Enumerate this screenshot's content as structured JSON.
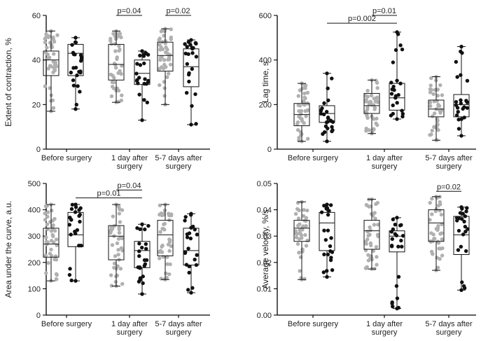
{
  "chart_data": [
    {
      "type": "box",
      "ylabel": "Extent of contraction, %",
      "ylim": [
        0,
        60
      ],
      "yticks": [
        0,
        20,
        40,
        60
      ],
      "categories": [
        "Before surgery",
        "1 day after surgery",
        "5-7 days after surgery"
      ],
      "colors": {
        "group_a": "#b0b0b0",
        "group_b": "#111111"
      },
      "boxes": [
        {
          "category": 0,
          "group": "a",
          "min": 17,
          "q1": 33,
          "median": 40,
          "q3": 44,
          "max": 53
        },
        {
          "category": 0,
          "group": "b",
          "min": 18,
          "q1": 33,
          "median": 43,
          "q3": 47,
          "max": 50
        },
        {
          "category": 1,
          "group": "a",
          "min": 21,
          "q1": 31,
          "median": 38,
          "q3": 47,
          "max": 53
        },
        {
          "category": 1,
          "group": "b",
          "min": 13,
          "q1": 29,
          "median": 34,
          "q3": 40,
          "max": 44
        },
        {
          "category": 2,
          "group": "a",
          "min": 20,
          "q1": 35,
          "median": 42,
          "q3": 48,
          "max": 54
        },
        {
          "category": 2,
          "group": "b",
          "min": 11,
          "q1": 28,
          "median": 37,
          "q3": 45,
          "max": 49
        }
      ],
      "significance": [
        {
          "label": "p=0.04",
          "from": [
            1,
            "a"
          ],
          "to": [
            1,
            "b"
          ],
          "y": 60
        },
        {
          "label": "p=0.02",
          "from": [
            2,
            "a"
          ],
          "to": [
            2,
            "b"
          ],
          "y": 60
        }
      ]
    },
    {
      "type": "box",
      "ylabel": "Lag time, s",
      "ylim": [
        0,
        600
      ],
      "yticks": [
        0,
        200,
        400,
        600
      ],
      "categories": [
        "Before surgery",
        "1 day after surgery",
        "5-7 days after surgery"
      ],
      "colors": {
        "group_a": "#b0b0b0",
        "group_b": "#111111"
      },
      "boxes": [
        {
          "category": 0,
          "group": "a",
          "min": 35,
          "q1": 105,
          "median": 155,
          "q3": 205,
          "max": 295
        },
        {
          "category": 0,
          "group": "b",
          "min": 35,
          "q1": 120,
          "median": 160,
          "q3": 195,
          "max": 340
        },
        {
          "category": 1,
          "group": "a",
          "min": 70,
          "q1": 160,
          "median": 195,
          "q3": 250,
          "max": 310
        },
        {
          "category": 1,
          "group": "b",
          "min": 135,
          "q1": 175,
          "median": 230,
          "q3": 295,
          "max": 525
        },
        {
          "category": 2,
          "group": "a",
          "min": 40,
          "q1": 145,
          "median": 180,
          "q3": 220,
          "max": 325
        },
        {
          "category": 2,
          "group": "b",
          "min": 60,
          "q1": 145,
          "median": 200,
          "q3": 245,
          "max": 460
        }
      ],
      "significance": [
        {
          "label": "p=0.002",
          "from": [
            0,
            "b"
          ],
          "to": [
            1,
            "b"
          ],
          "y": 565
        },
        {
          "label": "p=0.01",
          "from": [
            1,
            "a"
          ],
          "to": [
            1,
            "b"
          ],
          "y": 600
        }
      ]
    },
    {
      "type": "box",
      "ylabel": "Area under the curve, a.u.",
      "ylim": [
        0,
        500
      ],
      "yticks": [
        0,
        100,
        200,
        300,
        400,
        500
      ],
      "categories": [
        "Before surgery",
        "1 day after surgery",
        "5-7 days after surgery"
      ],
      "colors": {
        "group_a": "#b0b0b0",
        "group_b": "#111111"
      },
      "boxes": [
        {
          "category": 0,
          "group": "a",
          "min": 130,
          "q1": 220,
          "median": 270,
          "q3": 330,
          "max": 420
        },
        {
          "category": 0,
          "group": "b",
          "min": 130,
          "q1": 260,
          "median": 305,
          "q3": 390,
          "max": 420
        },
        {
          "category": 1,
          "group": "a",
          "min": 110,
          "q1": 210,
          "median": 300,
          "q3": 340,
          "max": 420
        },
        {
          "category": 1,
          "group": "b",
          "min": 80,
          "q1": 180,
          "median": 245,
          "q3": 280,
          "max": 345
        },
        {
          "category": 2,
          "group": "a",
          "min": 135,
          "q1": 225,
          "median": 305,
          "q3": 360,
          "max": 420
        },
        {
          "category": 2,
          "group": "b",
          "min": 85,
          "q1": 190,
          "median": 245,
          "q3": 330,
          "max": 385
        }
      ],
      "significance": [
        {
          "label": "p=0.01",
          "from": [
            0,
            "b"
          ],
          "to": [
            1,
            "b"
          ],
          "y": 445
        },
        {
          "label": "p=0.04",
          "from": [
            1,
            "a"
          ],
          "to": [
            1,
            "b"
          ],
          "y": 475
        }
      ]
    },
    {
      "type": "box",
      "ylabel": "Average velocity, %/s",
      "ylim": [
        0,
        0.05
      ],
      "yticks": [
        "0.00",
        "0.01",
        "0.02",
        "0.03",
        "0.04",
        "0.05"
      ],
      "categories": [
        "Before surgery",
        "1 day after surgery",
        "5-7 days after surgery"
      ],
      "colors": {
        "group_a": "#b0b0b0",
        "group_b": "#111111"
      },
      "boxes": [
        {
          "category": 0,
          "group": "a",
          "min": 0.0135,
          "q1": 0.028,
          "median": 0.033,
          "q3": 0.036,
          "max": 0.043
        },
        {
          "category": 0,
          "group": "b",
          "min": 0.0145,
          "q1": 0.0245,
          "median": 0.035,
          "q3": 0.039,
          "max": 0.042
        },
        {
          "category": 1,
          "group": "a",
          "min": 0.0175,
          "q1": 0.025,
          "median": 0.032,
          "q3": 0.036,
          "max": 0.044
        },
        {
          "category": 1,
          "group": "b",
          "min": 0.0025,
          "q1": 0.024,
          "median": 0.03,
          "q3": 0.032,
          "max": 0.037
        },
        {
          "category": 2,
          "group": "a",
          "min": 0.017,
          "q1": 0.028,
          "median": 0.035,
          "q3": 0.04,
          "max": 0.045
        },
        {
          "category": 2,
          "group": "b",
          "min": 0.0095,
          "q1": 0.023,
          "median": 0.0305,
          "q3": 0.0375,
          "max": 0.041
        }
      ],
      "significance": [
        {
          "label": "p=0.02",
          "from": [
            2,
            "a"
          ],
          "to": [
            2,
            "b"
          ],
          "y": 0.047
        }
      ]
    }
  ]
}
